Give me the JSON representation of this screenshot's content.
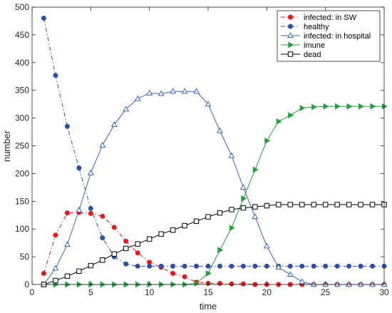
{
  "chart_data": {
    "type": "line",
    "xlabel": "time",
    "ylabel": "number",
    "xlim": [
      0,
      30
    ],
    "ylim": [
      0,
      500
    ],
    "xticks": [
      0,
      5,
      10,
      15,
      20,
      25,
      30
    ],
    "yticks": [
      0,
      50,
      100,
      150,
      200,
      250,
      300,
      350,
      400,
      450,
      500
    ],
    "grid": false,
    "legend_position": "top-right",
    "x": [
      1,
      2,
      3,
      4,
      5,
      6,
      7,
      8,
      9,
      10,
      11,
      12,
      13,
      14,
      15,
      16,
      17,
      18,
      19,
      20,
      21,
      22,
      23,
      24,
      25,
      26,
      27,
      28,
      29,
      30
    ],
    "series": [
      {
        "name": "infected: in SW",
        "color": "#e41a1c",
        "line": "dashdot",
        "marker": "circle-filled",
        "values": [
          20,
          89,
          129,
          130,
          128,
          123,
          103,
          78,
          57,
          40,
          31,
          20,
          14,
          4,
          2,
          2,
          1,
          1,
          0,
          0,
          0,
          0,
          0,
          0,
          0,
          0,
          0,
          0,
          0,
          0
        ]
      },
      {
        "name": "healthy",
        "color": "#2b50a8",
        "line": "dashdot",
        "marker": "circle-filled",
        "values": [
          480,
          377,
          285,
          210,
          137,
          84,
          50,
          37,
          33,
          33,
          33,
          33,
          33,
          33,
          33,
          33,
          33,
          33,
          33,
          33,
          33,
          33,
          33,
          33,
          33,
          33,
          33,
          33,
          33,
          33
        ]
      },
      {
        "name": "infected: in hospital",
        "color": "#3a64c8",
        "line": "solid",
        "marker": "triangle-up-open",
        "values": [
          0,
          29,
          72,
          134,
          201,
          251,
          288,
          316,
          335,
          345,
          344,
          348,
          348,
          348,
          325,
          277,
          232,
          175,
          122,
          69,
          31,
          18,
          5,
          0,
          0,
          0,
          0,
          0,
          0,
          0
        ]
      },
      {
        "name": "imune",
        "color": "#23a23a",
        "line": "solid",
        "marker": "triangle-right-filled",
        "values": [
          0,
          0,
          0,
          0,
          0,
          0,
          0,
          0,
          0,
          0,
          0,
          0,
          0,
          2,
          20,
          62,
          102,
          155,
          207,
          259,
          294,
          305,
          318,
          320,
          321,
          321,
          321,
          321,
          321,
          321
        ]
      },
      {
        "name": "dead",
        "color": "#000000",
        "line": "solid",
        "marker": "square-open",
        "values": [
          0,
          7,
          15,
          24,
          34,
          44,
          55,
          65,
          73,
          82,
          91,
          98,
          106,
          114,
          122,
          129,
          135,
          138,
          140,
          142,
          144,
          144,
          144,
          144,
          144,
          144,
          144,
          144,
          144,
          144
        ]
      }
    ]
  }
}
